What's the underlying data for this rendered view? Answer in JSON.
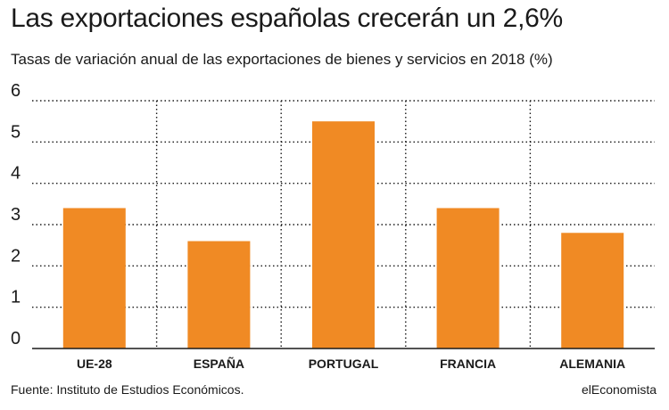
{
  "header": {
    "title": "Las exportaciones españolas crecerán un 2,6%",
    "subtitle": "Tasas de variación anual de las exportaciones de bienes y servicios en 2018 (%)"
  },
  "footer": {
    "source": "Fuente: Instituto de Estudios Económicos.",
    "brand": "elEconomista"
  },
  "colors": {
    "bar": "#f08a24",
    "text": "#1a1a1a",
    "grid": "#1a1a1a"
  },
  "chart_data": {
    "type": "bar",
    "title": "Las exportaciones españolas crecerán un 2,6%",
    "subtitle": "Tasas de variación anual de las exportaciones de bienes y servicios en 2018 (%)",
    "categories": [
      "UE-28",
      "ESPAÑA",
      "PORTUGAL",
      "FRANCIA",
      "ALEMANIA"
    ],
    "values": [
      3.4,
      2.6,
      5.5,
      3.4,
      2.8
    ],
    "ylim": [
      0,
      6
    ],
    "yticks": [
      "0",
      "1",
      "2",
      "3",
      "4",
      "5",
      "6"
    ],
    "grid": true,
    "grid_style": "dotted",
    "xlabel": "",
    "ylabel": ""
  }
}
